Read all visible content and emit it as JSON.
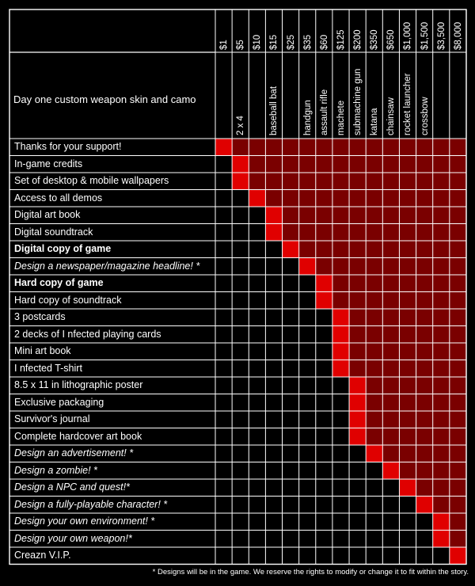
{
  "header_label": "Day one custom weapon skin and camo",
  "tiers": [
    {
      "price": "$1",
      "name": ""
    },
    {
      "price": "$5",
      "name": "2 x 4"
    },
    {
      "price": "$10",
      "name": ""
    },
    {
      "price": "$15",
      "name": "baseball bat"
    },
    {
      "price": "$25",
      "name": ""
    },
    {
      "price": "$35",
      "name": "handgun"
    },
    {
      "price": "$60",
      "name": "assault rifle"
    },
    {
      "price": "$125",
      "name": "machete"
    },
    {
      "price": "$200",
      "name": "submachine gun"
    },
    {
      "price": "$350",
      "name": "katana"
    },
    {
      "price": "$650",
      "name": "chainsaw"
    },
    {
      "price": "$1,000",
      "name": "rocket launcher"
    },
    {
      "price": "$1,500",
      "name": "crossbow"
    },
    {
      "price": "$3,500",
      "name": ""
    },
    {
      "price": "$8,000",
      "name": ""
    }
  ],
  "rewards": [
    {
      "label": "Thanks for your support!",
      "style": "",
      "from": 0
    },
    {
      "label": "In-game credits",
      "style": "",
      "from": 1
    },
    {
      "label": "Set of desktop & mobile wallpapers",
      "style": "",
      "from": 1
    },
    {
      "label": "Access to all demos",
      "style": "",
      "from": 2
    },
    {
      "label": "Digital art book",
      "style": "",
      "from": 3
    },
    {
      "label": "Digital soundtrack",
      "style": "",
      "from": 3
    },
    {
      "label": "Digital copy of game",
      "style": "bold",
      "from": 4
    },
    {
      "label": "Design a newspaper/magazine headline! *",
      "style": "italic",
      "from": 5
    },
    {
      "label": "Hard copy of game",
      "style": "bold",
      "from": 6
    },
    {
      "label": "Hard copy of soundtrack",
      "style": "",
      "from": 6
    },
    {
      "label": "3 postcards",
      "style": "",
      "from": 7
    },
    {
      "label": "2 decks of I nfected playing cards",
      "style": "",
      "from": 7
    },
    {
      "label": "Mini art book",
      "style": "",
      "from": 7
    },
    {
      "label": "I nfected T-shirt",
      "style": "",
      "from": 7
    },
    {
      "label": "8.5 x 11 in lithographic poster",
      "style": "",
      "from": 8
    },
    {
      "label": "Exclusive packaging",
      "style": "",
      "from": 8
    },
    {
      "label": "Survivor's journal",
      "style": "",
      "from": 8
    },
    {
      "label": "Complete hardcover art book",
      "style": "",
      "from": 8
    },
    {
      "label": "Design an advertisement! *",
      "style": "italic",
      "from": 9
    },
    {
      "label": "Design a zombie! *",
      "style": "italic",
      "from": 10
    },
    {
      "label": "Design a NPC and quest!*",
      "style": "italic",
      "from": 11
    },
    {
      "label": "Design a fully-playable character! *",
      "style": "italic",
      "from": 12
    },
    {
      "label": "Design your own environment! *",
      "style": "italic",
      "from": 13
    },
    {
      "label": "Design your own weapon!*",
      "style": "italic",
      "from": 13
    },
    {
      "label": "Creazn V.I.P.",
      "style": "",
      "from": 14
    }
  ],
  "colors": {
    "first_unlock": "#e00000",
    "included": "#7a0000",
    "not_included": "#000000",
    "grid": "#ffffff"
  },
  "footnote": "* Designs will be in the game. We reserve the rights to modify or change it to fit within the story."
}
